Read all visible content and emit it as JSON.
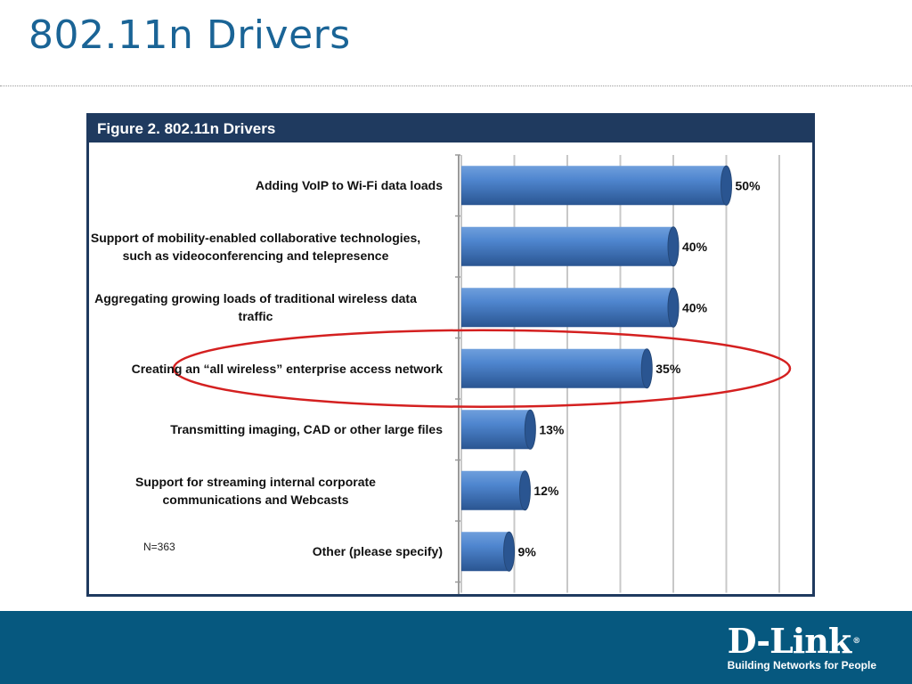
{
  "slide": {
    "title": "802.11n Drivers"
  },
  "figure": {
    "header": "Figure 2. 802.11n Drivers",
    "note": "N=363"
  },
  "chart_data": {
    "type": "bar",
    "orientation": "horizontal",
    "categories": [
      "Adding VoIP to Wi-Fi data loads",
      "Support of mobility-enabled collaborative technologies, such as videoconferencing and telepresence",
      "Aggregating growing loads of traditional wireless data traffic",
      "Creating an “all wireless” enterprise access network",
      "Transmitting imaging, CAD or other large files",
      "Support for streaming internal corporate communications and Webcasts",
      "Other (please specify)"
    ],
    "category_lines": [
      [
        "Adding VoIP to Wi-Fi data loads"
      ],
      [
        "Support of mobility-enabled collaborative technologies,",
        "such as videoconferencing and telepresence"
      ],
      [
        "Aggregating growing loads of traditional wireless data",
        "traffic"
      ],
      [
        "Creating an “all wireless” enterprise access network"
      ],
      [
        "Transmitting imaging, CAD or other large files"
      ],
      [
        "Support for streaming internal corporate",
        "communications and Webcasts"
      ],
      [
        "Other (please specify)"
      ]
    ],
    "values": [
      50,
      40,
      40,
      35,
      13,
      12,
      9
    ],
    "value_labels": [
      "50%",
      "40%",
      "40%",
      "35%",
      "13%",
      "12%",
      "9%"
    ],
    "xlim": [
      0,
      60
    ],
    "grid": true,
    "highlighted_category_index": 3,
    "colors": {
      "bar": "#3f78c0",
      "bar_dark": "#2a5591",
      "highlight_ellipse": "#d42020",
      "header": "#1f3a5f"
    }
  },
  "footer": {
    "brand": "D-Link",
    "tagline": "Building Networks for People"
  }
}
